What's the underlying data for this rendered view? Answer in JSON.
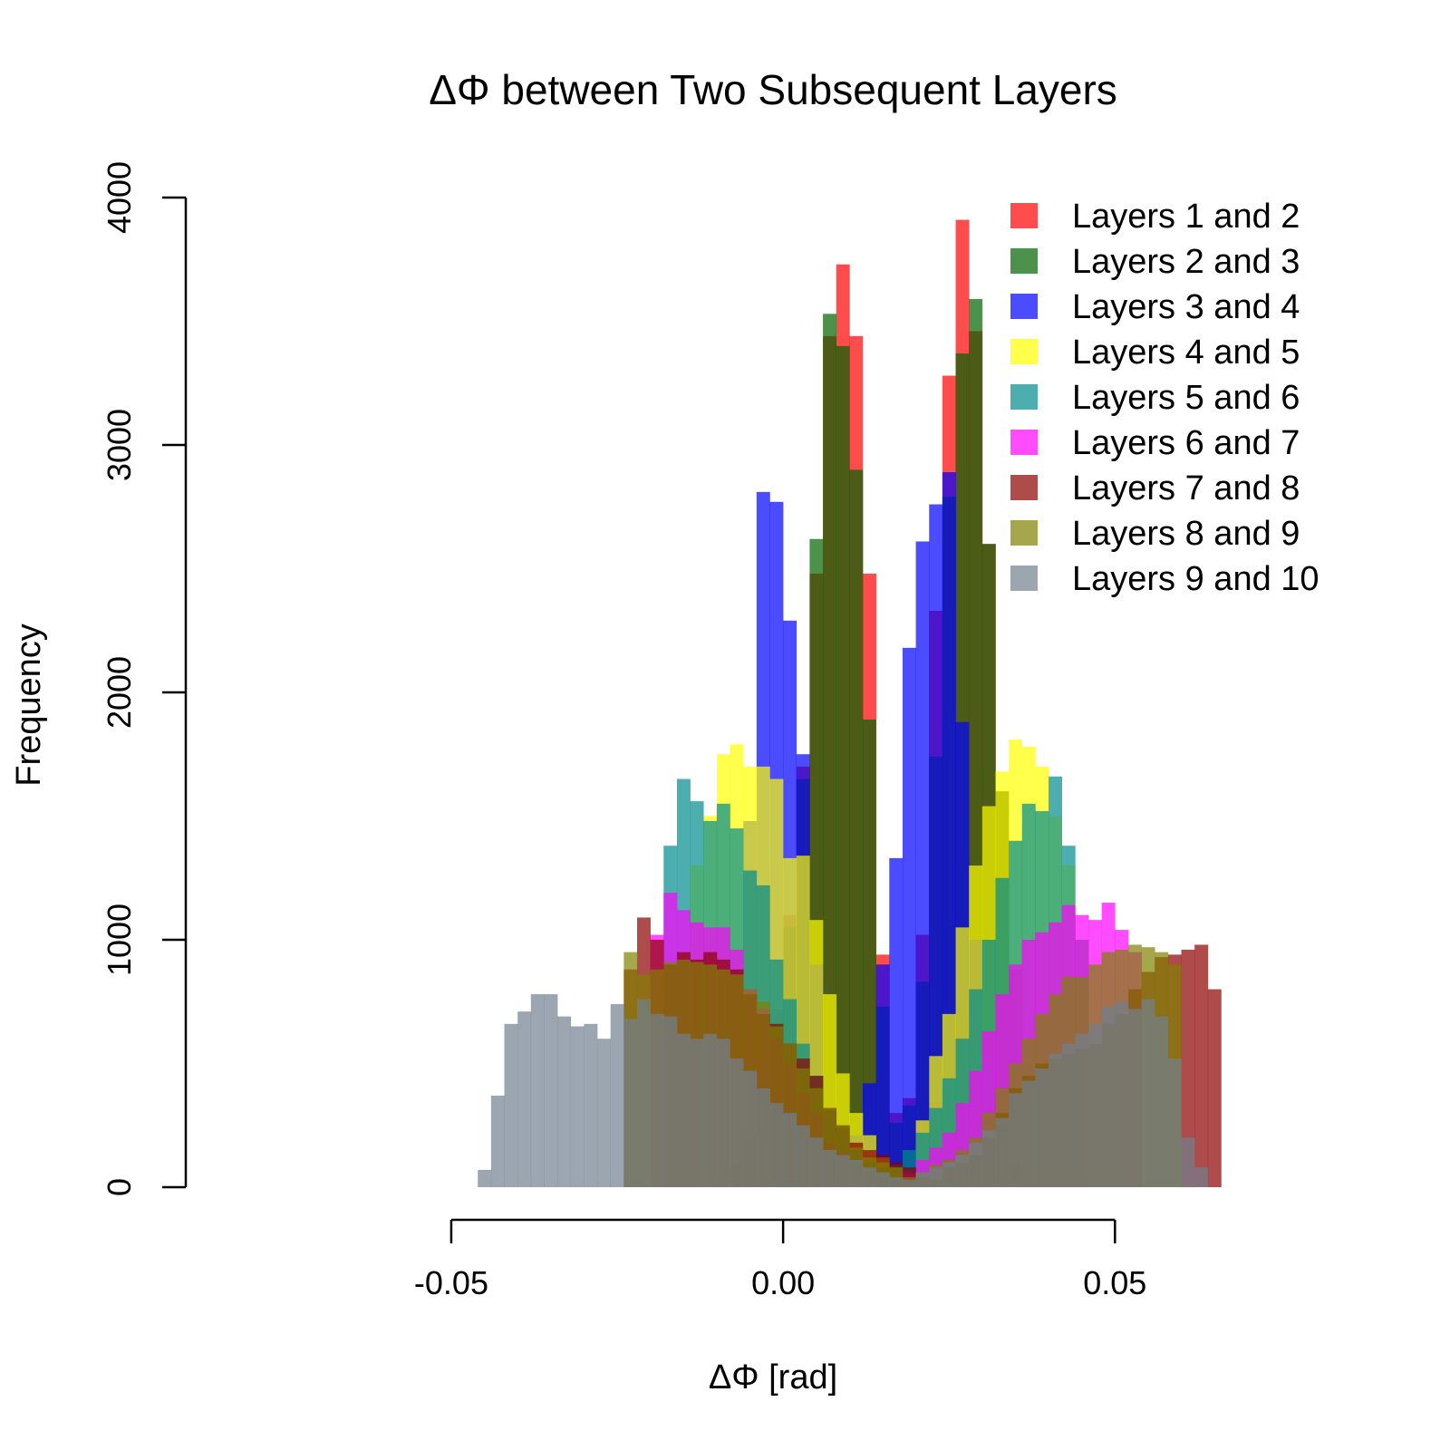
{
  "chart_data": {
    "type": "histogram",
    "title": "ΔΦ between Two Subsequent Layers",
    "xlabel": "ΔΦ  [rad]",
    "ylabel": "Frequency",
    "xlim": [
      -0.09,
      0.08
    ],
    "ylim": [
      0,
      4000
    ],
    "x_ticks": [
      -0.05,
      0.0,
      0.05
    ],
    "x_tick_labels": [
      "-0.05",
      "0.00",
      "0.05"
    ],
    "y_ticks": [
      0,
      1000,
      2000,
      3000,
      4000
    ],
    "y_tick_labels": [
      "0",
      "1000",
      "2000",
      "3000",
      "4000"
    ],
    "bin_width": 0.002,
    "bin_start": -0.06,
    "legend_position": "top-right",
    "grid": false,
    "series": [
      {
        "name": "Layers 1 and 2",
        "color": "#FF0000",
        "values": [
          0,
          0,
          0,
          0,
          0,
          0,
          0,
          0,
          0,
          0,
          0,
          0,
          0,
          0,
          0,
          0,
          0,
          0,
          0,
          0,
          0,
          0,
          0,
          0,
          0,
          0,
          100,
          230,
          470,
          720,
          1100,
          1700,
          2480,
          3440,
          3730,
          3440,
          2480,
          940,
          300,
          360,
          1020,
          2330,
          3280,
          3910,
          3460,
          2600,
          1600,
          880,
          500,
          260,
          120,
          50,
          0,
          0,
          0,
          0,
          0,
          0,
          0,
          0,
          0,
          0,
          0,
          0,
          0,
          0,
          0,
          0,
          0,
          0,
          0,
          0,
          0,
          0,
          0,
          0,
          0,
          0,
          0,
          0
        ]
      },
      {
        "name": "Layers 2 and 3",
        "color": "#006400",
        "values": [
          0,
          0,
          0,
          0,
          0,
          0,
          0,
          0,
          0,
          0,
          0,
          0,
          0,
          0,
          0,
          0,
          0,
          0,
          0,
          0,
          0,
          0,
          0,
          0,
          0,
          0,
          90,
          200,
          420,
          690,
          1050,
          1650,
          2620,
          3530,
          3400,
          2900,
          1890,
          730,
          260,
          330,
          830,
          1740,
          2790,
          3370,
          3590,
          2600,
          1600,
          880,
          480,
          260,
          120,
          50,
          0,
          0,
          0,
          0,
          0,
          0,
          0,
          0,
          0,
          0,
          0,
          0,
          0,
          0,
          0,
          0,
          0,
          0,
          0,
          0,
          0,
          0,
          0,
          0,
          0,
          0,
          0,
          0
        ]
      },
      {
        "name": "Layers 3 and 4",
        "color": "#0000FF",
        "values": [
          0,
          0,
          0,
          0,
          0,
          0,
          0,
          0,
          0,
          0,
          0,
          0,
          0,
          0,
          0,
          0,
          0,
          0,
          0,
          0,
          0,
          0,
          0,
          0,
          0,
          300,
          700,
          1480,
          2810,
          2770,
          2290,
          1750,
          900,
          280,
          190,
          210,
          420,
          900,
          1330,
          2180,
          2610,
          2760,
          2890,
          1880,
          1000,
          500,
          250,
          100,
          0,
          0,
          0,
          0,
          0,
          0,
          0,
          0,
          0,
          0,
          0,
          0,
          0,
          0,
          0,
          0,
          0,
          0,
          0,
          0,
          0,
          0,
          0,
          0,
          0,
          0,
          0,
          0,
          0,
          0,
          0,
          0
        ]
      },
      {
        "name": "Layers 4 and 5",
        "color": "#FFFF00",
        "values": [
          0,
          0,
          0,
          0,
          0,
          0,
          0,
          0,
          0,
          0,
          0,
          0,
          0,
          0,
          0,
          0,
          0,
          0,
          0,
          0,
          0,
          0,
          0,
          1300,
          1500,
          1750,
          1790,
          1700,
          1700,
          1650,
          1330,
          1340,
          1080,
          780,
          460,
          300,
          210,
          120,
          80,
          50,
          270,
          530,
          700,
          1050,
          1300,
          1540,
          1680,
          1810,
          1780,
          1700,
          1500,
          1300,
          1000,
          0,
          0,
          0,
          0,
          0,
          0,
          0,
          0,
          0,
          0,
          0,
          0,
          0,
          0,
          0,
          0,
          0,
          0,
          0,
          0,
          0,
          0,
          0,
          0,
          0,
          0,
          0
        ]
      },
      {
        "name": "Layers 5 and 6",
        "color": "#008B8B",
        "values": [
          0,
          0,
          0,
          0,
          0,
          0,
          0,
          0,
          0,
          0,
          0,
          0,
          0,
          0,
          0,
          0,
          0,
          0,
          0,
          0,
          0,
          1380,
          1650,
          1560,
          1480,
          1550,
          1450,
          1280,
          1220,
          920,
          760,
          580,
          450,
          310,
          240,
          150,
          100,
          80,
          90,
          150,
          220,
          320,
          440,
          600,
          800,
          1000,
          1250,
          1400,
          1550,
          1520,
          1660,
          1380,
          1000,
          0,
          0,
          0,
          0,
          0,
          0,
          0,
          0,
          0,
          0,
          0,
          0,
          0,
          0,
          0,
          0,
          0,
          0,
          0,
          0,
          0,
          0,
          0,
          0,
          0,
          0,
          0
        ]
      },
      {
        "name": "Layers 6 and 7",
        "color": "#FF00FF",
        "values": [
          0,
          0,
          0,
          0,
          0,
          0,
          0,
          0,
          0,
          0,
          0,
          0,
          0,
          0,
          0,
          0,
          0,
          0,
          0,
          0,
          1020,
          1190,
          1120,
          1070,
          1050,
          1050,
          960,
          800,
          720,
          600,
          500,
          380,
          300,
          180,
          140,
          90,
          60,
          40,
          30,
          60,
          110,
          160,
          220,
          340,
          470,
          630,
          780,
          900,
          1000,
          1030,
          1070,
          1140,
          1100,
          1080,
          1150,
          1040,
          950,
          0,
          0,
          0,
          0,
          0,
          0,
          0,
          0,
          0,
          0,
          0,
          0,
          0,
          0,
          0,
          0,
          0,
          0,
          0,
          0,
          0,
          0,
          0,
          0
        ]
      },
      {
        "name": "Layers 7 and 8",
        "color": "#8B0000",
        "values": [
          0,
          0,
          0,
          0,
          0,
          0,
          0,
          0,
          0,
          0,
          0,
          0,
          0,
          0,
          0,
          0,
          0,
          0,
          880,
          1090,
          1000,
          900,
          950,
          920,
          950,
          920,
          880,
          780,
          700,
          660,
          580,
          520,
          450,
          320,
          250,
          180,
          150,
          130,
          100,
          80,
          40,
          30,
          80,
          100,
          130,
          200,
          300,
          400,
          450,
          500,
          520,
          540,
          560,
          580,
          660,
          700,
          800,
          870,
          930,
          940,
          960,
          980,
          800,
          0,
          0,
          0,
          0,
          0,
          0,
          0,
          0,
          0,
          0,
          0,
          0,
          0,
          0,
          0,
          0,
          0
        ]
      },
      {
        "name": "Layers 8 and 9",
        "color": "#808000",
        "values": [
          0,
          0,
          0,
          0,
          0,
          0,
          0,
          0,
          0,
          0,
          0,
          0,
          0,
          0,
          0,
          0,
          0,
          0,
          950,
          860,
          880,
          910,
          920,
          910,
          900,
          880,
          860,
          800,
          750,
          650,
          580,
          480,
          400,
          320,
          250,
          160,
          120,
          100,
          80,
          40,
          60,
          90,
          110,
          150,
          200,
          300,
          400,
          500,
          600,
          700,
          780,
          850,
          850,
          900,
          950,
          960,
          980,
          970,
          950,
          900,
          0,
          0,
          0,
          0,
          0,
          0,
          0,
          0,
          0,
          0,
          0,
          0,
          0,
          0,
          0,
          0,
          0,
          0,
          0,
          0
        ]
      },
      {
        "name": "Layers 9 and 10",
        "color": "#708090",
        "values": [
          0,
          0,
          0,
          0,
          0,
          0,
          0,
          70,
          370,
          660,
          710,
          780,
          780,
          690,
          650,
          660,
          600,
          740,
          680,
          760,
          700,
          690,
          620,
          600,
          620,
          600,
          520,
          470,
          400,
          340,
          300,
          250,
          200,
          150,
          130,
          110,
          80,
          60,
          40,
          30,
          60,
          80,
          100,
          130,
          180,
          230,
          280,
          380,
          430,
          480,
          540,
          580,
          620,
          660,
          730,
          750,
          720,
          760,
          690,
          520,
          200,
          80,
          0,
          0,
          0,
          0,
          0,
          0,
          0,
          0,
          0,
          0,
          0,
          0,
          0,
          0,
          0,
          0,
          0,
          0
        ]
      }
    ]
  }
}
